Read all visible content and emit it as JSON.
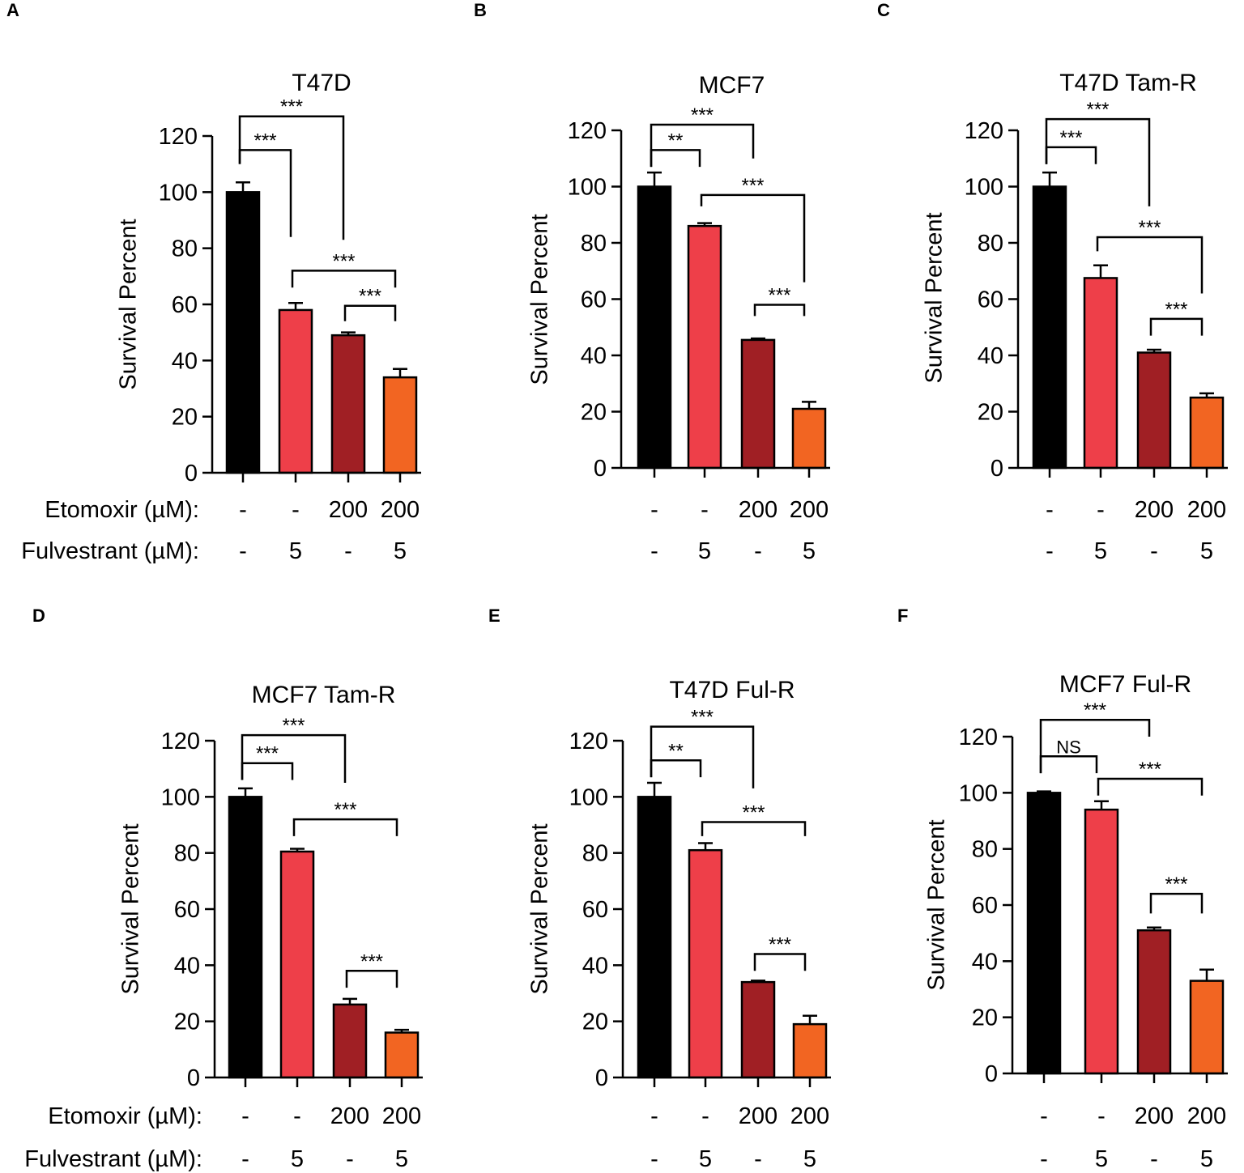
{
  "colors": {
    "bars": [
      "#000000",
      "#ee3f49",
      "#a01f24",
      "#f26522"
    ],
    "axis": "#000000"
  },
  "row_labels": {
    "etomoxir": "Etomoxir (µM):",
    "fulvestrant": "Fulvestrant (µM):"
  },
  "conditions": {
    "etomoxir": [
      "-",
      "-",
      "200",
      "200"
    ],
    "fulvestrant": [
      "-",
      "5",
      "-",
      "5"
    ]
  },
  "chart_data": [
    {
      "panel": "A",
      "type": "bar",
      "title": "T47D",
      "ylabel": "Survival Percent",
      "ylim": [
        0,
        120
      ],
      "yticks": [
        0,
        20,
        40,
        60,
        80,
        100,
        120
      ],
      "values": [
        100,
        58,
        49,
        34
      ],
      "errors": [
        3.5,
        2.5,
        1,
        3
      ],
      "brackets": [
        {
          "from": 0,
          "to": 1,
          "level": 115,
          "left_drop": 110,
          "right_drop": 84,
          "label": "***"
        },
        {
          "from": 0,
          "to": 2,
          "level": 127,
          "left_drop": 110,
          "right_drop": 83,
          "label": "***"
        },
        {
          "from": 1,
          "to": 3,
          "level": 72,
          "left_drop": 66,
          "right_drop": 66,
          "label": "***"
        },
        {
          "from": 2,
          "to": 3,
          "level": 59.5,
          "left_drop": 54,
          "right_drop": 54,
          "label": "***"
        }
      ]
    },
    {
      "panel": "B",
      "type": "bar",
      "title": "MCF7",
      "ylabel": "Survival Percent",
      "ylim": [
        0,
        120
      ],
      "yticks": [
        0,
        20,
        40,
        60,
        80,
        100,
        120
      ],
      "values": [
        100,
        86,
        45.5,
        21
      ],
      "errors": [
        5,
        1,
        0.5,
        2.5
      ],
      "brackets": [
        {
          "from": 0,
          "to": 1,
          "level": 113,
          "left_drop": 107,
          "right_drop": 107,
          "label": "**"
        },
        {
          "from": 0,
          "to": 2,
          "level": 122,
          "left_drop": 107,
          "right_drop": 110,
          "label": "***"
        },
        {
          "from": 1,
          "to": 3,
          "level": 97,
          "left_drop": 93,
          "right_drop": 66,
          "label": "***"
        },
        {
          "from": 2,
          "to": 3,
          "level": 58,
          "left_drop": 54,
          "right_drop": 54,
          "label": "***"
        }
      ]
    },
    {
      "panel": "C",
      "type": "bar",
      "title": "T47D Tam-R",
      "ylabel": "Survival Percent",
      "ylim": [
        0,
        120
      ],
      "yticks": [
        0,
        20,
        40,
        60,
        80,
        100,
        120
      ],
      "values": [
        100,
        67.5,
        41,
        25
      ],
      "errors": [
        5,
        4.5,
        1,
        1.5
      ],
      "brackets": [
        {
          "from": 0,
          "to": 1,
          "level": 114,
          "left_drop": 108,
          "right_drop": 108,
          "label": "***"
        },
        {
          "from": 0,
          "to": 2,
          "level": 124,
          "left_drop": 108,
          "right_drop": 93,
          "label": "***"
        },
        {
          "from": 1,
          "to": 3,
          "level": 82,
          "left_drop": 77,
          "right_drop": 62,
          "label": "***"
        },
        {
          "from": 2,
          "to": 3,
          "level": 53,
          "left_drop": 47,
          "right_drop": 47,
          "label": "***"
        }
      ]
    },
    {
      "panel": "D",
      "type": "bar",
      "title": "MCF7 Tam-R",
      "ylabel": "Survival Percent",
      "ylim": [
        0,
        120
      ],
      "yticks": [
        0,
        20,
        40,
        60,
        80,
        100,
        120
      ],
      "values": [
        100,
        80.5,
        26,
        16
      ],
      "errors": [
        3,
        1,
        2,
        1
      ],
      "brackets": [
        {
          "from": 0,
          "to": 1,
          "level": 112,
          "left_drop": 106,
          "right_drop": 106,
          "label": "***"
        },
        {
          "from": 0,
          "to": 2,
          "level": 122,
          "left_drop": 106,
          "right_drop": 105,
          "label": "***"
        },
        {
          "from": 1,
          "to": 3,
          "level": 92,
          "left_drop": 86,
          "right_drop": 86,
          "label": "***"
        },
        {
          "from": 2,
          "to": 3,
          "level": 38,
          "left_drop": 32,
          "right_drop": 32,
          "label": "***"
        }
      ]
    },
    {
      "panel": "E",
      "type": "bar",
      "title": "T47D Ful-R",
      "ylabel": "Survival Percent",
      "ylim": [
        0,
        120
      ],
      "yticks": [
        0,
        20,
        40,
        60,
        80,
        100,
        120
      ],
      "values": [
        100,
        81,
        34,
        19
      ],
      "errors": [
        5,
        2.5,
        0.5,
        3
      ],
      "brackets": [
        {
          "from": 0,
          "to": 1,
          "level": 113,
          "left_drop": 107,
          "right_drop": 107,
          "label": "**"
        },
        {
          "from": 0,
          "to": 2,
          "level": 125,
          "left_drop": 107,
          "right_drop": 103,
          "label": "***"
        },
        {
          "from": 1,
          "to": 3,
          "level": 91,
          "left_drop": 86,
          "right_drop": 86,
          "label": "***"
        },
        {
          "from": 2,
          "to": 3,
          "level": 44,
          "left_drop": 38,
          "right_drop": 38,
          "label": "***"
        }
      ]
    },
    {
      "panel": "F",
      "type": "bar",
      "title": "MCF7 Ful-R",
      "ylabel": "Survival Percent",
      "ylim": [
        0,
        120
      ],
      "yticks": [
        0,
        20,
        40,
        60,
        80,
        100,
        120
      ],
      "values": [
        100,
        94,
        51,
        33
      ],
      "errors": [
        0.5,
        3,
        1,
        4
      ],
      "brackets": [
        {
          "from": 0,
          "to": 1,
          "level": 113,
          "left_drop": 107,
          "right_drop": 107,
          "label": "NS"
        },
        {
          "from": 0,
          "to": 2,
          "level": 126,
          "left_drop": 107,
          "right_drop": 120,
          "label": "***"
        },
        {
          "from": 1,
          "to": 3,
          "level": 105,
          "left_drop": 99,
          "right_drop": 99,
          "label": "***"
        },
        {
          "from": 2,
          "to": 3,
          "level": 64,
          "left_drop": 57,
          "right_drop": 57,
          "label": "***"
        }
      ]
    }
  ]
}
